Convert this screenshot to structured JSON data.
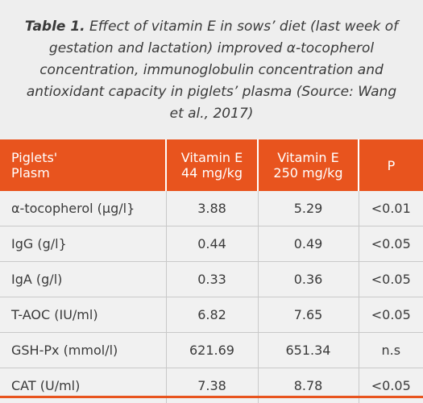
{
  "caption": {
    "lead": "Table 1.",
    "text": " Effect of vitamin E in sows’ diet (last week of gestation and lactation) improved α-tocopherol concentration, immunoglobulin concentration and antioxidant capacity in piglets’ plasma (Source: Wang et al., 2017)"
  },
  "table": {
    "headers": {
      "col1_line1": "Piglets'",
      "col1_line2": "Plasm",
      "col2_line1": "Vitamin E",
      "col2_line2": "44 mg/kg",
      "col3_line1": "Vitamin E",
      "col3_line2": "250 mg/kg",
      "col4": "P"
    },
    "rows": [
      {
        "label": "α-tocopherol (µg/l}",
        "v44": "3.88",
        "v250": "5.29",
        "p": "<0.01"
      },
      {
        "label": "IgG (g/l}",
        "v44": "0.44",
        "v250": "0.49",
        "p": "<0.05"
      },
      {
        "label": "IgA (g/l)",
        "v44": "0.33",
        "v250": "0.36",
        "p": "<0.05"
      },
      {
        "label": "T-AOC (IU/ml)",
        "v44": "6.82",
        "v250": "7.65",
        "p": "<0.05"
      },
      {
        "label": "GSH-Px (mmol/l)",
        "v44": "621.69",
        "v250": "651.34",
        "p": "n.s"
      },
      {
        "label": "CAT (U/ml)",
        "v44": "7.38",
        "v250": "8.78",
        "p": "<0.05"
      }
    ]
  },
  "colors": {
    "header_bg": "#e8541e",
    "header_text": "#ffffff",
    "background": "#f1f1f1"
  }
}
